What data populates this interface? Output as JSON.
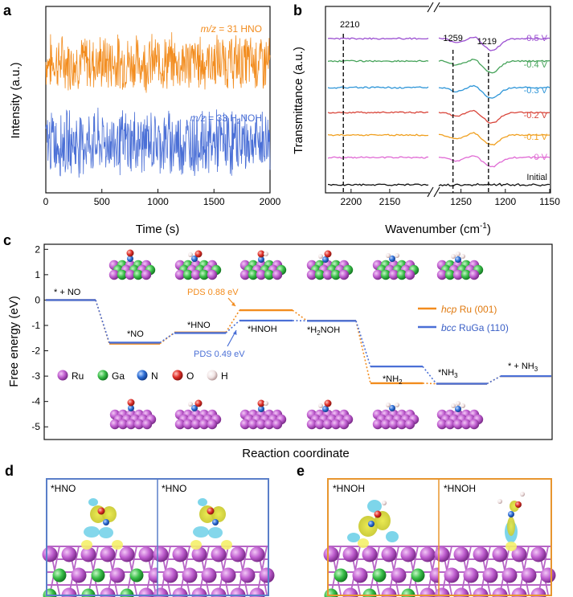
{
  "panels": {
    "a": "a",
    "b": "b",
    "c": "c",
    "d": "d",
    "e": "e"
  },
  "chart_data": [
    {
      "panel": "a",
      "type": "line",
      "xlabel": "Time (s)",
      "ylabel": "Intensity (a.u.)",
      "xlim": [
        0,
        2000
      ],
      "xticks": [
        0,
        500,
        1000,
        1500,
        2000
      ],
      "series": [
        {
          "name": "m/z = 31 HNO",
          "italic_prefix": "m/z",
          "label_rest": " = 31 HNO",
          "color": "#f28c1e",
          "level": 0.7,
          "noise": 0.13
        },
        {
          "name": "m/z = 33 H2NOH",
          "italic_prefix": "m/z",
          "label_rest": " = 33 H",
          "label_sub": "2",
          "label_tail": "NOH",
          "color": "#4a6fd6",
          "level": 0.27,
          "noise": 0.15
        }
      ]
    },
    {
      "panel": "b",
      "type": "line",
      "xlabel_main": "Wavenumber (cm",
      "xlabel_sup": "-1",
      "xlabel_end": ")",
      "ylabel": "Transmittance (a.u.)",
      "axis_break": "//",
      "xlim_left": [
        2230,
        2100
      ],
      "xlim_right": [
        1275,
        1150
      ],
      "xticks_left": [
        2200,
        2150
      ],
      "xticks_right": [
        1250,
        1200,
        1150
      ],
      "dashed_markers": [
        2210,
        1259,
        1219
      ],
      "series": [
        {
          "name": "-0.5 V",
          "color": "#9b4fd1"
        },
        {
          "name": "-0.4 V",
          "color": "#46a35a"
        },
        {
          "name": "-0.3 V",
          "color": "#2f96d8"
        },
        {
          "name": "-0.2 V",
          "color": "#d9463b"
        },
        {
          "name": "-0.1 V",
          "color": "#f0a020"
        },
        {
          "name": "0 V",
          "color": "#e06ad4"
        },
        {
          "name": "Initial",
          "color": "#111111"
        }
      ]
    },
    {
      "panel": "c",
      "type": "line",
      "xlabel": "Reaction coordinate",
      "ylabel": "Free energy (eV)",
      "ylim": [
        -5.5,
        2.2
      ],
      "yticks": [
        2,
        1,
        0,
        -1,
        -2,
        -3,
        -4,
        -5
      ],
      "states": [
        "* + NO",
        "*NO",
        "*HNO",
        "*HNOH",
        "*H2NOH",
        "*NH2",
        "*NH3",
        "* + NH3"
      ],
      "series": [
        {
          "name": "hcp Ru (001)",
          "italic": "hcp",
          "rest": " Ru (001)",
          "color": "#f28c1e",
          "values": [
            0,
            -1.72,
            -1.28,
            -0.4,
            -0.82,
            -3.28,
            -3.3,
            -3.0
          ]
        },
        {
          "name": "bcc RuGa (110)",
          "italic": "bcc",
          "rest": " RuGa (110)",
          "color": "#4a6fd6",
          "values": [
            0,
            -1.68,
            -1.3,
            -0.81,
            -0.82,
            -2.62,
            -3.3,
            -3.0
          ]
        }
      ],
      "annotations": [
        {
          "text": "PDS 0.88 eV",
          "color": "#f28c1e"
        },
        {
          "text": "PDS 0.49 eV",
          "color": "#4a6fd6"
        }
      ],
      "atom_legend": [
        {
          "symbol": "Ru",
          "color": "#c05fd0"
        },
        {
          "symbol": "Ga",
          "color": "#3bbf4a"
        },
        {
          "symbol": "N",
          "color": "#2e6fd6"
        },
        {
          "symbol": "O",
          "color": "#e0302a"
        },
        {
          "symbol": "H",
          "color": "#f3e3e3"
        }
      ]
    }
  ],
  "panel_d": {
    "labels": [
      "*HNO",
      "*HNO"
    ],
    "frame_color": "#5a7fc9"
  },
  "panel_e": {
    "labels": [
      "*HNOH",
      "*HNOH"
    ],
    "frame_color": "#e8962f"
  }
}
